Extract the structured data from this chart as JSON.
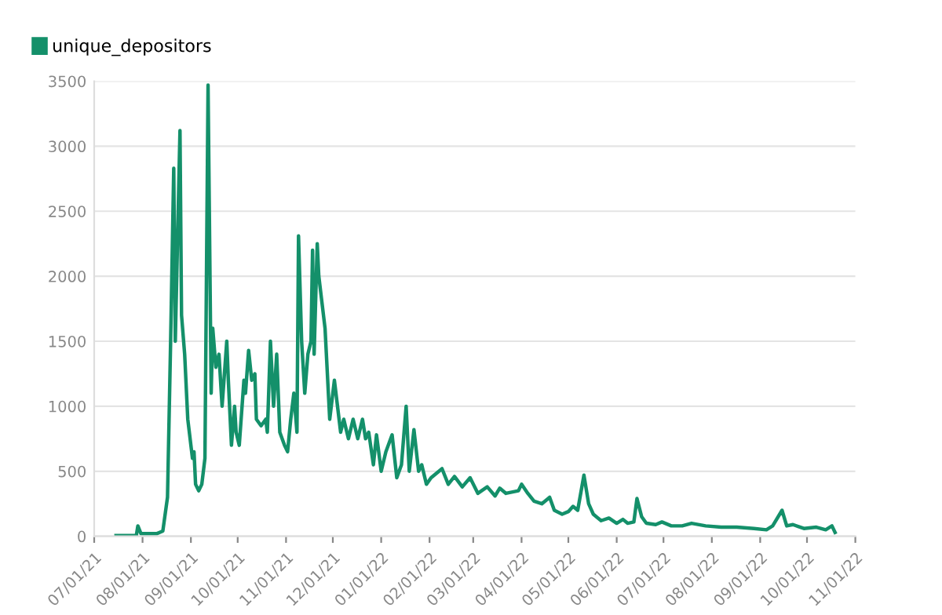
{
  "chart_data": {
    "type": "line",
    "legend": "top left",
    "grid": "y",
    "xlim": [
      "2021-07-01",
      "2022-11-01"
    ],
    "xticks": [
      {
        "value": "2021-07-01",
        "label": "07/01/21"
      },
      {
        "value": "2021-08-01",
        "label": "08/01/21"
      },
      {
        "value": "2021-09-01",
        "label": "09/01/21"
      },
      {
        "value": "2021-10-01",
        "label": "10/01/21"
      },
      {
        "value": "2021-11-01",
        "label": "11/01/21"
      },
      {
        "value": "2021-12-01",
        "label": "12/01/21"
      },
      {
        "value": "2022-01-01",
        "label": "01/01/22"
      },
      {
        "value": "2022-02-01",
        "label": "02/01/22"
      },
      {
        "value": "2022-03-01",
        "label": "03/01/22"
      },
      {
        "value": "2022-04-01",
        "label": "04/01/22"
      },
      {
        "value": "2022-05-01",
        "label": "05/01/22"
      },
      {
        "value": "2022-06-01",
        "label": "06/01/22"
      },
      {
        "value": "2022-07-01",
        "label": "07/01/22"
      },
      {
        "value": "2022-08-01",
        "label": "08/01/22"
      },
      {
        "value": "2022-09-01",
        "label": "09/01/22"
      },
      {
        "value": "2022-10-01",
        "label": "10/01/22"
      },
      {
        "value": "2022-11-01",
        "label": "11/01/22"
      }
    ],
    "ylim": [
      0,
      3500
    ],
    "yticks": [
      0,
      500,
      1000,
      1500,
      2000,
      2500,
      3000,
      3500
    ],
    "x": [
      "2021-07-15",
      "2021-07-28",
      "2021-07-29",
      "2021-07-31",
      "2021-08-10",
      "2021-08-14",
      "2021-08-17",
      "2021-08-19",
      "2021-08-21",
      "2021-08-22",
      "2021-08-25",
      "2021-08-26",
      "2021-08-28",
      "2021-08-30",
      "2021-09-02",
      "2021-09-03",
      "2021-09-04",
      "2021-09-06",
      "2021-09-08",
      "2021-09-10",
      "2021-09-12",
      "2021-09-14",
      "2021-09-15",
      "2021-09-17",
      "2021-09-19",
      "2021-09-21",
      "2021-09-24",
      "2021-09-25",
      "2021-09-27",
      "2021-09-29",
      "2021-09-30",
      "2021-10-02",
      "2021-10-05",
      "2021-10-06",
      "2021-10-08",
      "2021-10-10",
      "2021-10-12",
      "2021-10-13",
      "2021-10-16",
      "2021-10-19",
      "2021-10-20",
      "2021-10-22",
      "2021-10-24",
      "2021-10-26",
      "2021-10-28",
      "2021-10-31",
      "2021-11-02",
      "2021-11-04",
      "2021-11-06",
      "2021-11-08",
      "2021-11-09",
      "2021-11-11",
      "2021-11-13",
      "2021-11-15",
      "2021-11-17",
      "2021-11-18",
      "2021-11-19",
      "2021-11-21",
      "2021-11-22",
      "2021-11-24",
      "2021-11-26",
      "2021-11-29",
      "2021-12-01",
      "2021-12-02",
      "2021-12-04",
      "2021-12-06",
      "2021-12-08",
      "2021-12-11",
      "2021-12-14",
      "2021-12-17",
      "2021-12-20",
      "2021-12-22",
      "2021-12-24",
      "2021-12-27",
      "2021-12-29",
      "2022-01-01",
      "2022-01-04",
      "2022-01-08",
      "2022-01-11",
      "2022-01-14",
      "2022-01-17",
      "2022-01-19",
      "2022-01-22",
      "2022-01-25",
      "2022-01-27",
      "2022-01-30",
      "2022-02-02",
      "2022-02-09",
      "2022-02-13",
      "2022-02-17",
      "2022-02-22",
      "2022-02-27",
      "2022-03-04",
      "2022-03-10",
      "2022-03-15",
      "2022-03-18",
      "2022-03-22",
      "2022-03-30",
      "2022-04-01",
      "2022-04-05",
      "2022-04-09",
      "2022-04-14",
      "2022-04-19",
      "2022-04-22",
      "2022-04-27",
      "2022-05-01",
      "2022-05-04",
      "2022-05-07",
      "2022-05-11",
      "2022-05-14",
      "2022-05-17",
      "2022-05-22",
      "2022-05-27",
      "2022-06-01",
      "2022-06-05",
      "2022-06-08",
      "2022-06-12",
      "2022-06-14",
      "2022-06-17",
      "2022-06-20",
      "2022-06-26",
      "2022-06-30",
      "2022-07-06",
      "2022-07-13",
      "2022-07-19",
      "2022-07-28",
      "2022-08-07",
      "2022-08-17",
      "2022-08-28",
      "2022-09-05",
      "2022-09-09",
      "2022-09-15",
      "2022-09-18",
      "2022-09-22",
      "2022-09-29",
      "2022-10-07",
      "2022-10-13",
      "2022-10-17",
      "2022-10-19"
    ],
    "series": [
      {
        "name": "unique_depositors",
        "color": "#14906a",
        "values": [
          5,
          5,
          80,
          20,
          20,
          40,
          300,
          1500,
          2830,
          1500,
          3120,
          1700,
          1400,
          900,
          600,
          650,
          400,
          350,
          400,
          600,
          3470,
          1100,
          1600,
          1300,
          1400,
          1000,
          1500,
          1200,
          700,
          1000,
          800,
          700,
          1200,
          1100,
          1430,
          1200,
          1250,
          900,
          850,
          900,
          800,
          1500,
          1000,
          1400,
          800,
          700,
          650,
          900,
          1100,
          800,
          2310,
          1500,
          1100,
          1400,
          1500,
          2200,
          1400,
          2250,
          2000,
          1800,
          1600,
          900,
          1100,
          1200,
          1000,
          800,
          900,
          750,
          900,
          750,
          900,
          750,
          800,
          550,
          780,
          500,
          650,
          780,
          450,
          550,
          1000,
          500,
          820,
          500,
          550,
          400,
          450,
          520,
          400,
          460,
          380,
          450,
          330,
          380,
          310,
          370,
          330,
          350,
          400,
          330,
          270,
          250,
          300,
          200,
          170,
          190,
          230,
          200,
          470,
          250,
          170,
          120,
          140,
          100,
          130,
          100,
          110,
          290,
          150,
          100,
          90,
          110,
          80,
          80,
          100,
          80,
          70,
          70,
          60,
          50,
          80,
          200,
          80,
          90,
          60,
          70,
          50,
          80,
          30
        ]
      }
    ]
  }
}
